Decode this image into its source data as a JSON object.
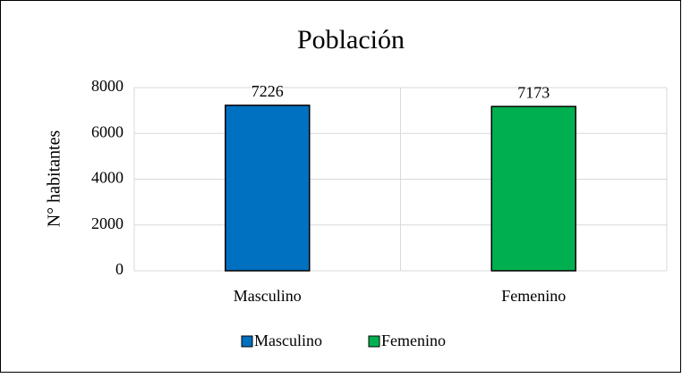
{
  "chart_data": {
    "type": "bar",
    "title": "Población",
    "y_label": "N° habitantes",
    "categories": [
      "Masculino",
      "Femenino"
    ],
    "values": [
      7226,
      7173
    ],
    "colors": [
      "#0070c0",
      "#00b050"
    ],
    "ylim": [
      0,
      8000
    ],
    "yticks": [
      0,
      2000,
      4000,
      6000,
      8000
    ],
    "grid": true,
    "legend": "bottom"
  }
}
